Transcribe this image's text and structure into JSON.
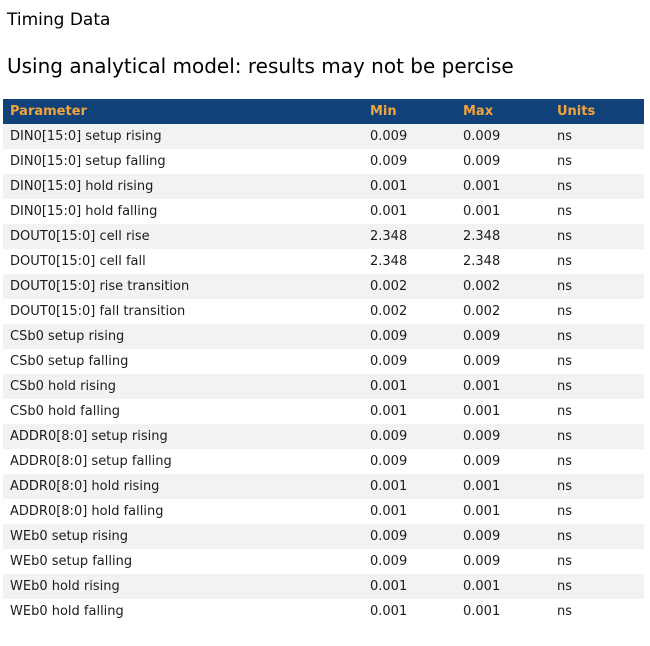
{
  "page": {
    "title": "Timing Data",
    "subtitle": "Using analytical model: results may not be percise"
  },
  "table": {
    "columns": [
      {
        "key": "parameter",
        "label": "Parameter"
      },
      {
        "key": "min",
        "label": "Min"
      },
      {
        "key": "max",
        "label": "Max"
      },
      {
        "key": "units",
        "label": "Units"
      }
    ],
    "rows": [
      {
        "parameter": "DIN0[15:0] setup rising",
        "min": "0.009",
        "max": "0.009",
        "units": "ns"
      },
      {
        "parameter": "DIN0[15:0] setup falling",
        "min": "0.009",
        "max": "0.009",
        "units": "ns"
      },
      {
        "parameter": "DIN0[15:0] hold rising",
        "min": "0.001",
        "max": "0.001",
        "units": "ns"
      },
      {
        "parameter": "DIN0[15:0] hold falling",
        "min": "0.001",
        "max": "0.001",
        "units": "ns"
      },
      {
        "parameter": "DOUT0[15:0] cell rise",
        "min": "2.348",
        "max": "2.348",
        "units": "ns"
      },
      {
        "parameter": "DOUT0[15:0] cell fall",
        "min": "2.348",
        "max": "2.348",
        "units": "ns"
      },
      {
        "parameter": "DOUT0[15:0] rise transition",
        "min": "0.002",
        "max": "0.002",
        "units": "ns"
      },
      {
        "parameter": "DOUT0[15:0] fall transition",
        "min": "0.002",
        "max": "0.002",
        "units": "ns"
      },
      {
        "parameter": "CSb0 setup rising",
        "min": "0.009",
        "max": "0.009",
        "units": "ns"
      },
      {
        "parameter": "CSb0 setup falling",
        "min": "0.009",
        "max": "0.009",
        "units": "ns"
      },
      {
        "parameter": "CSb0 hold rising",
        "min": "0.001",
        "max": "0.001",
        "units": "ns"
      },
      {
        "parameter": "CSb0 hold falling",
        "min": "0.001",
        "max": "0.001",
        "units": "ns"
      },
      {
        "parameter": "ADDR0[8:0] setup rising",
        "min": "0.009",
        "max": "0.009",
        "units": "ns"
      },
      {
        "parameter": "ADDR0[8:0] setup falling",
        "min": "0.009",
        "max": "0.009",
        "units": "ns"
      },
      {
        "parameter": "ADDR0[8:0] hold rising",
        "min": "0.001",
        "max": "0.001",
        "units": "ns"
      },
      {
        "parameter": "ADDR0[8:0] hold falling",
        "min": "0.001",
        "max": "0.001",
        "units": "ns"
      },
      {
        "parameter": "WEb0 setup rising",
        "min": "0.009",
        "max": "0.009",
        "units": "ns"
      },
      {
        "parameter": "WEb0 setup falling",
        "min": "0.009",
        "max": "0.009",
        "units": "ns"
      },
      {
        "parameter": "WEb0 hold rising",
        "min": "0.001",
        "max": "0.001",
        "units": "ns"
      },
      {
        "parameter": "WEb0 hold falling",
        "min": "0.001",
        "max": "0.001",
        "units": "ns"
      }
    ]
  },
  "colors": {
    "header_bg": "#114179",
    "header_text": "#f0a43c",
    "row_alt_bg": "#f1f2f2",
    "row_text": "#1c1c1c",
    "title_text": "#000000"
  }
}
